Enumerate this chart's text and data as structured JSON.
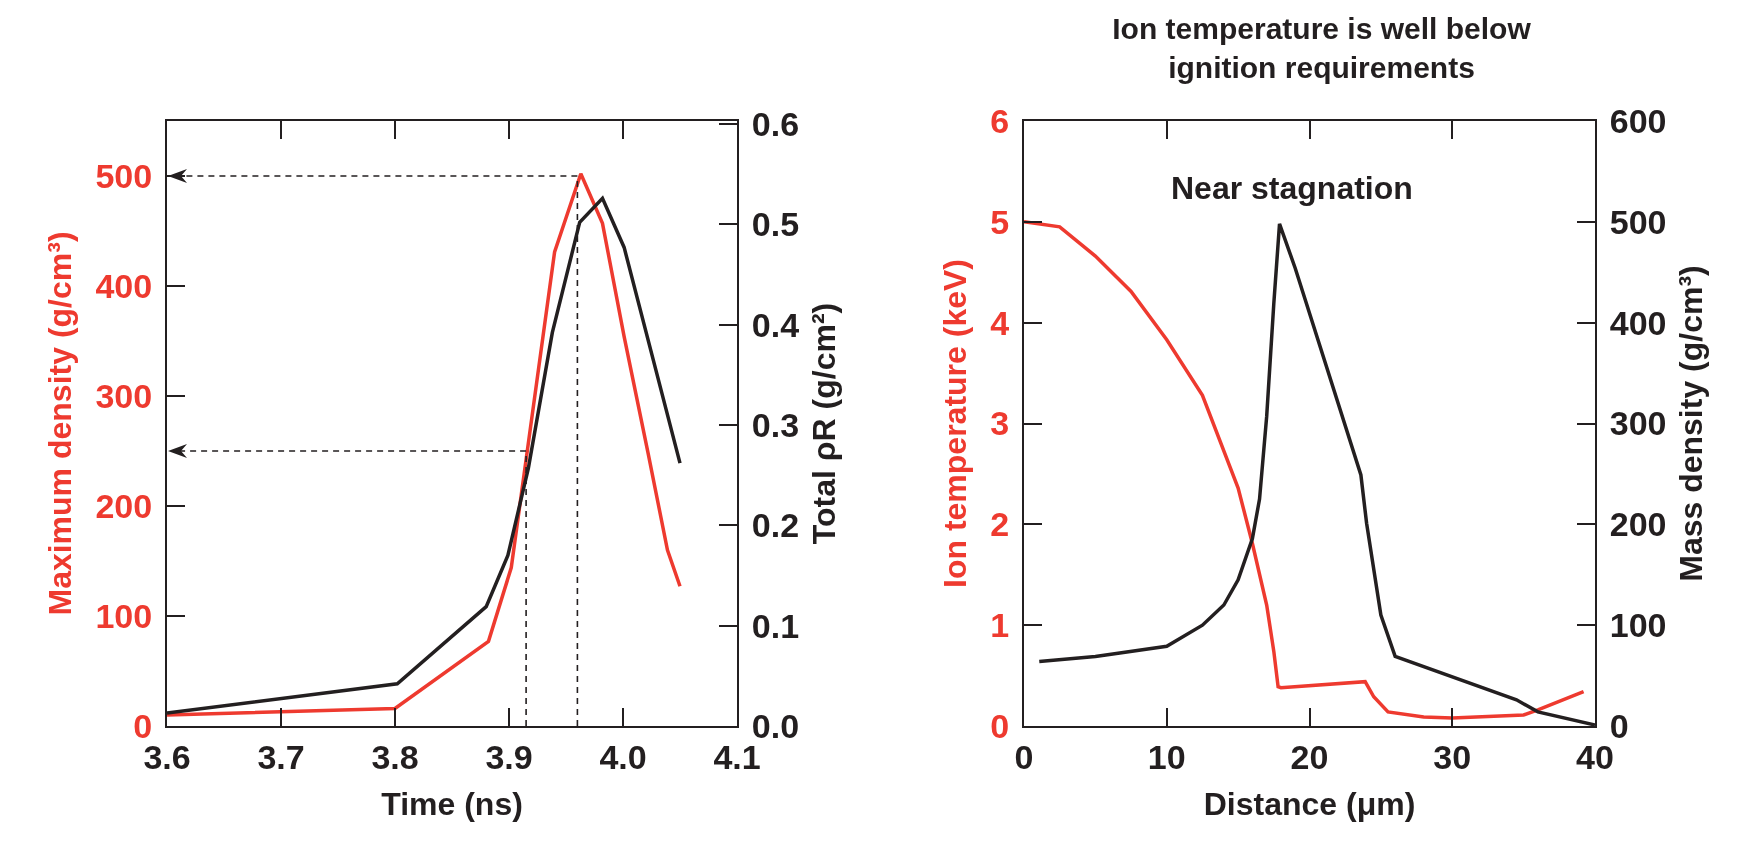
{
  "chart_data": [
    {
      "type": "line",
      "xlabel": "Time (ns)",
      "ylabel": "Maximum density (g/cm³)",
      "y2label": "Total ρR (g/cm²)",
      "xlim": [
        3.6,
        4.1
      ],
      "xticks": [
        3.6,
        3.7,
        3.8,
        3.9,
        {
          "value": 4,
          "label": "4.0"
        },
        4.1
      ],
      "ylim": [
        0,
        550
      ],
      "yticks": [
        0,
        100,
        200,
        300,
        400,
        500
      ],
      "y2lim": [
        0,
        0.603
      ],
      "y2ticks": [
        {
          "value": 0,
          "label": "0.0"
        },
        0.1,
        0.2,
        0.3,
        0.4,
        0.5,
        0.6
      ],
      "grid": false,
      "line_style": "solid",
      "marker": "none",
      "series": [
        {
          "color": "#ee3a2f",
          "x": [
            3.6,
            3.8,
            3.882,
            3.902,
            3.94,
            3.963,
            3.982,
            4.001,
            4.022,
            4.039,
            4.05
          ],
          "values": [
            10,
            16,
            77,
            144,
            431,
            502,
            457,
            354,
            248,
            160,
            127
          ]
        },
        {
          "color": "#231f20",
          "axis": "y2",
          "x": [
            3.6,
            3.802,
            3.88,
            3.899,
            3.917,
            3.938,
            3.962,
            3.982,
            4.001,
            4.05
          ],
          "values": [
            0.013,
            0.042,
            0.119,
            0.17,
            0.257,
            0.392,
            0.502,
            0.526,
            0.477,
            0.262
          ]
        }
      ]
    },
    {
      "type": "line",
      "title": "Ion temperature is well below ignition requirements",
      "xlabel": "Distance (μm)",
      "ylabel": "Ion temperature (keV)",
      "y2label": "Mass density (g/cm³)",
      "xlim": [
        0,
        40
      ],
      "xticks": [
        0,
        10,
        20,
        30,
        40
      ],
      "ylim": [
        0,
        6
      ],
      "yticks": [
        0,
        1,
        2,
        3,
        4,
        5,
        6
      ],
      "y2lim": [
        0,
        600
      ],
      "y2ticks": [
        0,
        100,
        200,
        300,
        400,
        500,
        600
      ],
      "grid": false,
      "line_style": "solid",
      "marker": "none",
      "annotations": [
        "Near stagnation"
      ],
      "series": [
        {
          "color": "#ee3a2f",
          "x": [
            0,
            2.5,
            5,
            7.5,
            10,
            12.5,
            15,
            16,
            17,
            17.5,
            17.8,
            18,
            23.9,
            24.5,
            25.5,
            28,
            30,
            35,
            36,
            39.2
          ],
          "values": [
            5.0,
            4.95,
            4.66,
            4.31,
            3.83,
            3.28,
            2.36,
            1.81,
            1.2,
            0.74,
            0.39,
            0.38,
            0.44,
            0.29,
            0.14,
            0.09,
            0.08,
            0.11,
            0.16,
            0.34
          ]
        },
        {
          "color": "#231f20",
          "axis": "y2",
          "x": [
            1.07,
            5,
            10,
            12.5,
            14,
            15,
            16,
            16.5,
            17,
            17.5,
            17.9,
            19,
            23.6,
            24,
            25,
            26,
            34.5,
            36,
            40
          ],
          "values": [
            64,
            69,
            79,
            100,
            120,
            145,
            186,
            225,
            307,
            419,
            498,
            454,
            249,
            201,
            110,
            69,
            26,
            14,
            1
          ]
        }
      ]
    }
  ]
}
